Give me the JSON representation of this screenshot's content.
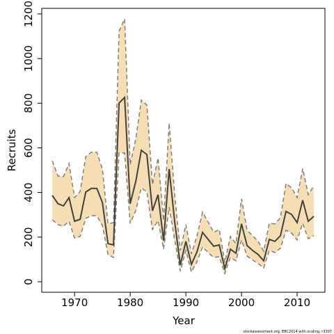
{
  "chart_data": {
    "type": "line",
    "x_label": "Year",
    "y_label": "Recruits",
    "footnote": "stockassessment.org, EBC2014 with scaling, r3307",
    "x": [
      1966,
      1967,
      1968,
      1969,
      1970,
      1971,
      1972,
      1973,
      1974,
      1975,
      1976,
      1977,
      1978,
      1979,
      1980,
      1981,
      1982,
      1983,
      1984,
      1985,
      1986,
      1987,
      1988,
      1989,
      1990,
      1991,
      1992,
      1993,
      1994,
      1995,
      1996,
      1997,
      1998,
      1999,
      2000,
      2001,
      2002,
      2003,
      2004,
      2005,
      2006,
      2007,
      2008,
      2009,
      2010,
      2011,
      2012,
      2013
    ],
    "series": [
      {
        "color": "#404040",
        "values": [
          387,
          350,
          340,
          377,
          271,
          280,
          402,
          418,
          418,
          355,
          171,
          165,
          801,
          826,
          350,
          449,
          589,
          570,
          318,
          390,
          184,
          505,
          268,
          75,
          181,
          78,
          134,
          221,
          190,
          159,
          165,
          59,
          146,
          128,
          259,
          162,
          140,
          122,
          94,
          190,
          181,
          206,
          315,
          302,
          265,
          365,
          271,
          293
        ]
      }
    ],
    "band": {
      "color": "#f5deb3",
      "edge_color": "#7f7f7f",
      "upper": [
        542,
        474,
        471,
        530,
        377,
        405,
        561,
        580,
        580,
        505,
        259,
        265,
        1122,
        1178,
        524,
        639,
        814,
        792,
        436,
        555,
        274,
        711,
        387,
        140,
        256,
        125,
        206,
        312,
        268,
        221,
        234,
        87,
        203,
        171,
        371,
        231,
        206,
        181,
        137,
        262,
        259,
        287,
        440,
        421,
        377,
        508,
        390,
        430
      ],
      "lower": [
        277,
        256,
        249,
        271,
        196,
        203,
        284,
        296,
        296,
        252,
        122,
        109,
        577,
        577,
        262,
        318,
        421,
        402,
        234,
        274,
        146,
        334,
        187,
        47,
        140,
        44,
        90,
        156,
        131,
        109,
        112,
        37,
        109,
        94,
        187,
        115,
        97,
        81,
        62,
        140,
        131,
        150,
        231,
        218,
        187,
        262,
        193,
        206
      ]
    },
    "xlim": [
      1964.1,
      2015.0
    ],
    "ylim": [
      -47,
      1225
    ],
    "xticks": [
      1970,
      1980,
      1990,
      2000,
      2010
    ],
    "yticks": [
      0,
      200,
      400,
      600,
      800,
      1000,
      1200
    ],
    "grid": false
  }
}
